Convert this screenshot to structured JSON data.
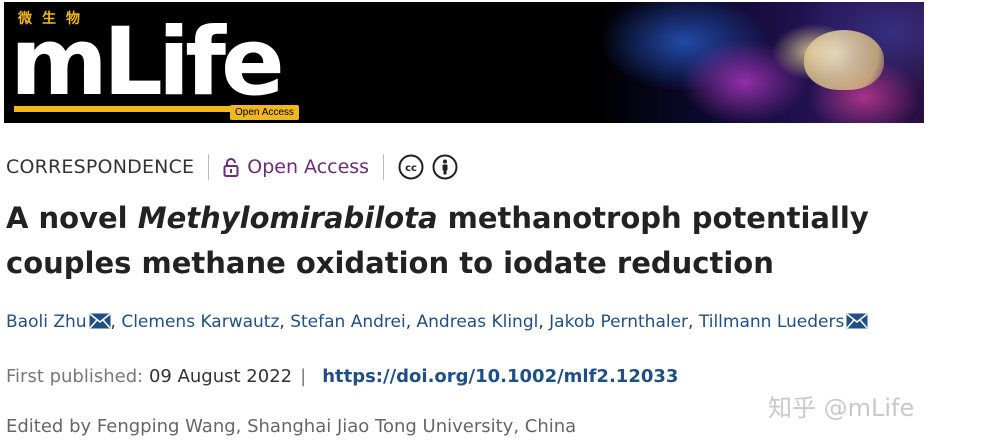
{
  "banner": {
    "logo_cn": "微生物",
    "logo_text": "mLife",
    "open_access_tag": "Open Access"
  },
  "meta": {
    "article_type": "CORRESPONDENCE",
    "open_access": "Open Access",
    "license_icons": [
      "cc-icon",
      "attribution-icon"
    ]
  },
  "title": {
    "prefix": "A novel ",
    "italic": "Methylomirabilota",
    "suffix": " methanotroph potentially couples methane oxidation to iodate reduction"
  },
  "authors": [
    {
      "name": "Baoli Zhu",
      "email": true
    },
    {
      "name": "Clemens Karwautz",
      "email": false
    },
    {
      "name": "Stefan Andrei",
      "email": false
    },
    {
      "name": "Andreas Klingl",
      "email": false
    },
    {
      "name": "Jakob Pernthaler",
      "email": false
    },
    {
      "name": "Tillmann Lueders",
      "email": true
    }
  ],
  "publication": {
    "label": "First published:",
    "date": "09 August 2022",
    "separator": "|",
    "doi": "https://doi.org/10.1002/mlf2.12033"
  },
  "editor": "Edited by Fengping Wang, Shanghai Jiao Tong University, China",
  "watermark": "知乎 @mLife",
  "colors": {
    "accent_purple": "#6b2c7a",
    "link_blue": "#1f4f86",
    "logo_gold": "#f0b81c"
  }
}
